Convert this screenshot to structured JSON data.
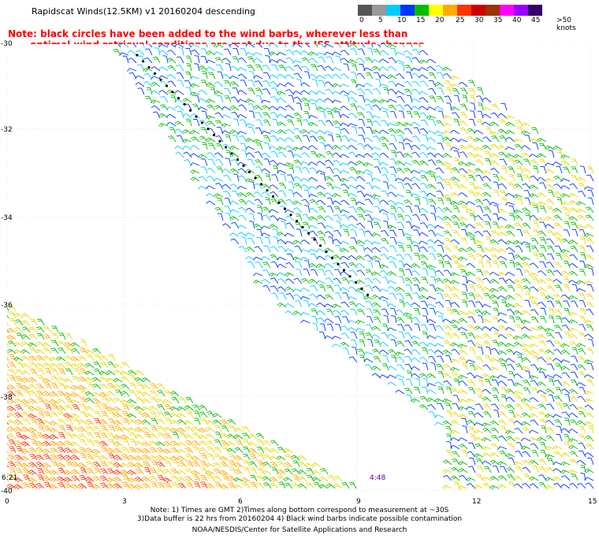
{
  "title": "Rapidscat Winds(12.5KM) v1 20160204 descending",
  "note_line1": "Note: black circles have been added to the wind barbs, wherever less than",
  "note_line2": "optimal wind retrieval conditions are met due to the ISS attitude changes.",
  "legend": {
    "labels": [
      "0",
      "5",
      "10",
      "15",
      "20",
      "25",
      "30",
      "35",
      "40",
      "45",
      ">50 knots"
    ],
    "colors": [
      "#555555",
      "#999999",
      "#00ccff",
      "#0033ff",
      "#00bb00",
      "#ffff00",
      "#ffaa00",
      "#ff3300",
      "#cc0000",
      "#993300",
      "#ff00ff",
      "#9900ff",
      "#330066"
    ]
  },
  "lat_labels": [
    "-30",
    "-32",
    "-34",
    "-36",
    "-38",
    "-40"
  ],
  "lon_labels": [
    "0",
    "3",
    "6",
    "9",
    "12",
    "15"
  ],
  "time_labels": [
    "6:21",
    "4:48"
  ],
  "footer": {
    "line1": "Note: 1) Times are GMT 2)Times along bottom correspond to measurement at ~30S",
    "line2": "3)Data buffer is 22 hrs from 20160204 4) Black wind barbs indicate possible contamination",
    "line3": "NOAA/NESDIS/Center for Satellite Applications and Research"
  },
  "map": {
    "description_regions": {
      "swath_a": "scatterometer swath covering northeast, mostly 5-15 knot winds",
      "swath_b": "second swath in southwest, 15-30 knot winds"
    },
    "lat_range": [
      -40,
      -30
    ],
    "lon_range": [
      0,
      15
    ]
  }
}
